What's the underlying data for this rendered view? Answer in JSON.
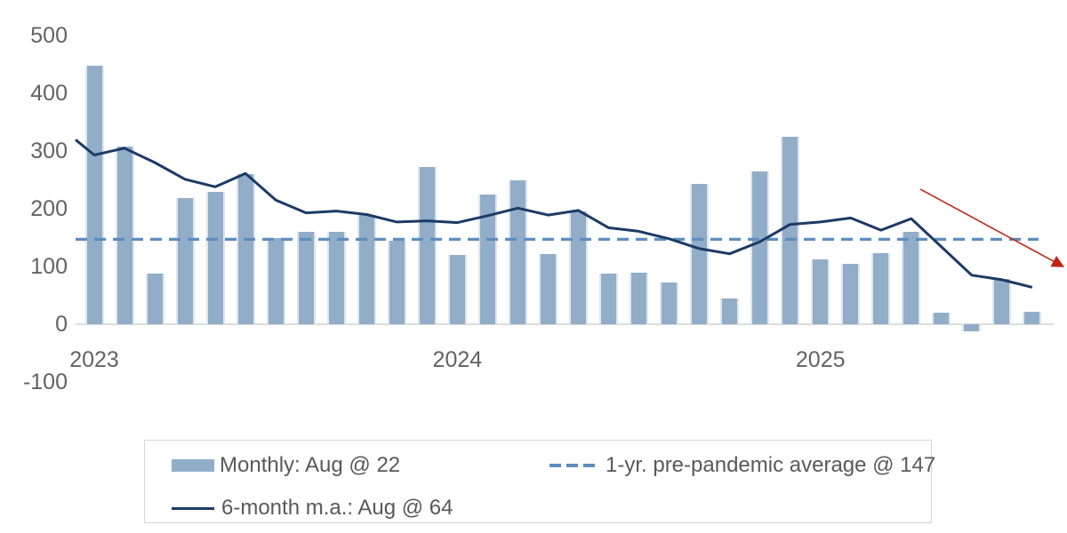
{
  "chart_data": {
    "type": "bar+line",
    "title": "",
    "x": [
      "2023-01",
      "2023-02",
      "2023-03",
      "2023-04",
      "2023-05",
      "2023-06",
      "2023-07",
      "2023-08",
      "2023-09",
      "2023-10",
      "2023-11",
      "2023-12",
      "2024-01",
      "2024-02",
      "2024-03",
      "2024-04",
      "2024-05",
      "2024-06",
      "2024-07",
      "2024-08",
      "2024-09",
      "2024-10",
      "2024-11",
      "2024-12",
      "2025-01",
      "2025-02",
      "2025-03",
      "2025-04",
      "2025-05",
      "2025-06",
      "2025-07",
      "2025-08"
    ],
    "series": [
      {
        "name": "Monthly",
        "type": "bar",
        "legend_label": "Monthly: Aug @ 22",
        "color": "#92adc7",
        "values": [
          447,
          308,
          87,
          219,
          230,
          260,
          150,
          160,
          160,
          190,
          144,
          272,
          120,
          225,
          249,
          121,
          196,
          88,
          89,
          72,
          243,
          45,
          264,
          325,
          113,
          104,
          123,
          160,
          20,
          -13,
          79,
          22
        ]
      },
      {
        "name": "6-month moving average",
        "type": "line",
        "legend_label": "6-month m.a.: Aug @ 64",
        "color": "#1c3a66",
        "lead_in_value": 336,
        "values": [
          293,
          305,
          280,
          251,
          238,
          261,
          215,
          193,
          196,
          190,
          177,
          179,
          176,
          188,
          201,
          189,
          197,
          167,
          161,
          148,
          131,
          122,
          143,
          173,
          177,
          184,
          163,
          183,
          134,
          85,
          77,
          64
        ]
      },
      {
        "name": "1-yr. pre-pandemic average",
        "type": "reference-line",
        "legend_label": "1-yr. pre-pandemic average @ 147",
        "style": "dashed",
        "color": "#5e8dbd",
        "value": 147
      }
    ],
    "annotation_arrow": {
      "color": "#c02618",
      "from": {
        "month_index": 27.3,
        "value": 234
      },
      "to": {
        "month_index": 31.7,
        "value": 109
      }
    },
    "ylim": [
      -100,
      500
    ],
    "yticks": [
      500,
      400,
      300,
      200,
      100,
      0,
      -100
    ],
    "xticks": [
      {
        "label": "2023",
        "month_index": 0
      },
      {
        "label": "2024",
        "month_index": 12
      },
      {
        "label": "2025",
        "month_index": 24
      }
    ],
    "grid": false,
    "legend_position": "bottom"
  },
  "legend": {
    "monthly_label": "Monthly: Aug @ 22",
    "ma_label": "6-month m.a.: Aug @ 64",
    "avg_label": "1-yr. pre-pandemic average @ 147"
  }
}
